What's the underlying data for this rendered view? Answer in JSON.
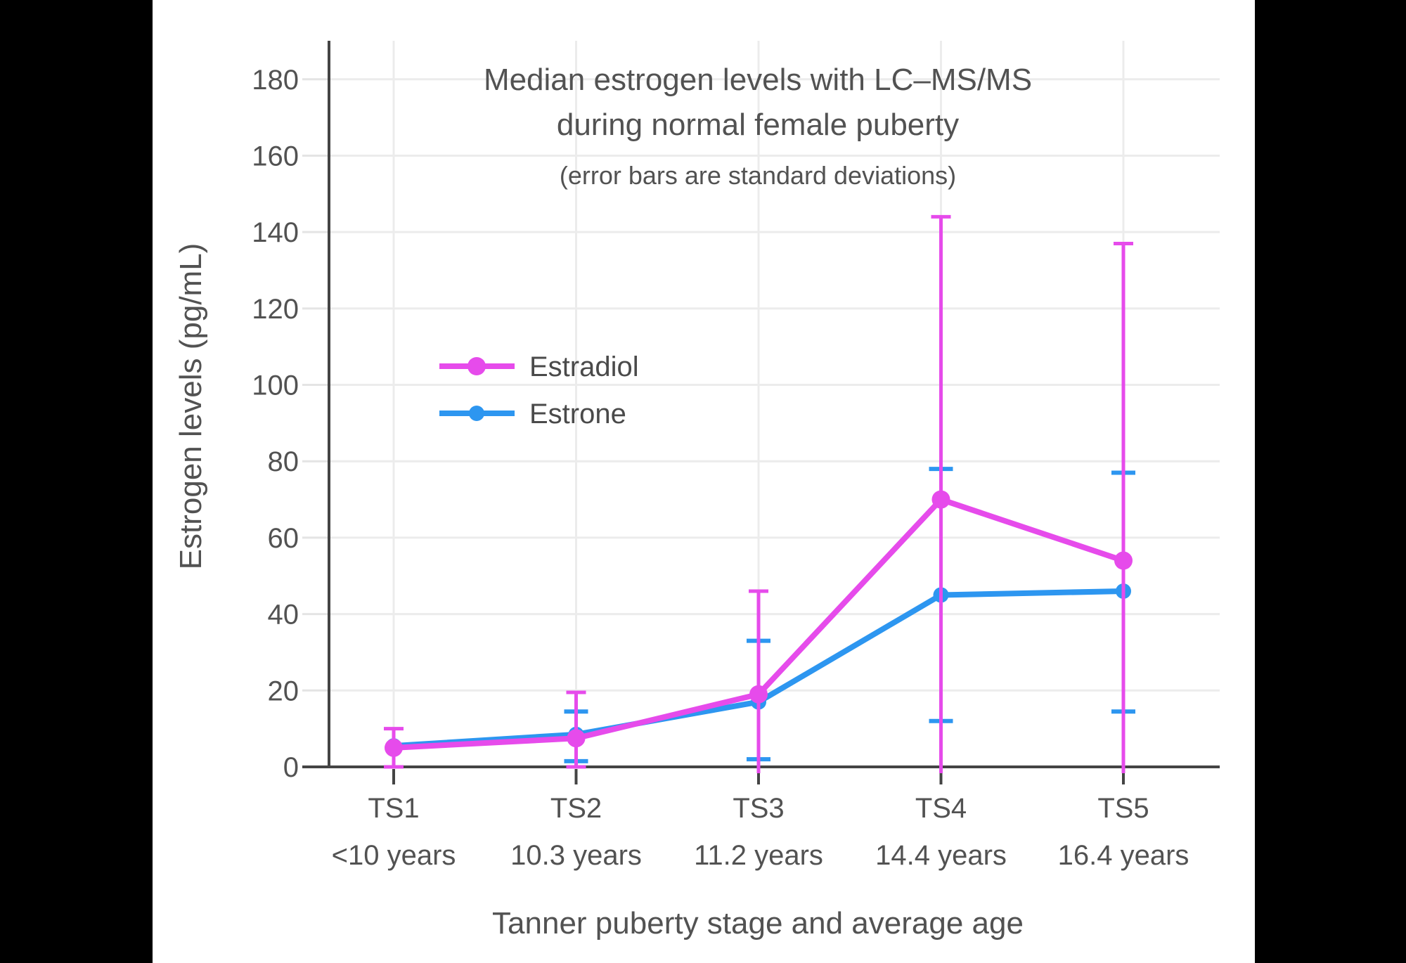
{
  "frame": {
    "left_bar_color": "#000000",
    "right_bar_color": "#000000",
    "panel_background": "#ffffff"
  },
  "chart_data": {
    "type": "line",
    "title": "Median estrogen levels with LC–MS/MS",
    "title_line2": "during normal female puberty",
    "subtitle": "(error bars are standard deviations)",
    "xlabel": "Tanner puberty stage and average age",
    "ylabel": "Estrogen levels (pg/mL)",
    "categories": [
      "TS1",
      "TS2",
      "TS3",
      "TS4",
      "TS5"
    ],
    "category_ages": [
      "<10 years",
      "10.3 years",
      "11.2 years",
      "14.4 years",
      "16.4 years"
    ],
    "yticks": [
      0,
      20,
      40,
      60,
      80,
      100,
      120,
      140,
      160,
      180
    ],
    "ylim": [
      0,
      190
    ],
    "grid": true,
    "legend_position": "inside-upper-left",
    "legend": [
      "Estradiol",
      "Estrone"
    ],
    "colors": {
      "estradiol": "#E64BEB",
      "estrone": "#2D96F0",
      "grid": "#ececec",
      "axis": "#444444",
      "text": "#525252"
    },
    "series": [
      {
        "name": "Estrone",
        "color": "#2D96F0",
        "values": [
          5.5,
          8.5,
          17,
          45,
          46
        ],
        "err_high": [
          null,
          14.5,
          33,
          78,
          77
        ],
        "err_low": [
          null,
          1.5,
          2,
          12,
          14.5
        ],
        "high_cap": [
          false,
          true,
          true,
          true,
          true
        ],
        "low_cap": [
          false,
          true,
          true,
          true,
          true
        ],
        "marker_radius": 11
      },
      {
        "name": "Estradiol",
        "color": "#E64BEB",
        "values": [
          5,
          7.5,
          19,
          70,
          54
        ],
        "err_high": [
          10,
          19.5,
          46,
          144,
          137
        ],
        "err_low": [
          0,
          0,
          0,
          0,
          0
        ],
        "high_cap": [
          true,
          true,
          true,
          true,
          true
        ],
        "low_cap": [
          true,
          true,
          false,
          false,
          false
        ],
        "marker_radius": 13
      }
    ]
  }
}
